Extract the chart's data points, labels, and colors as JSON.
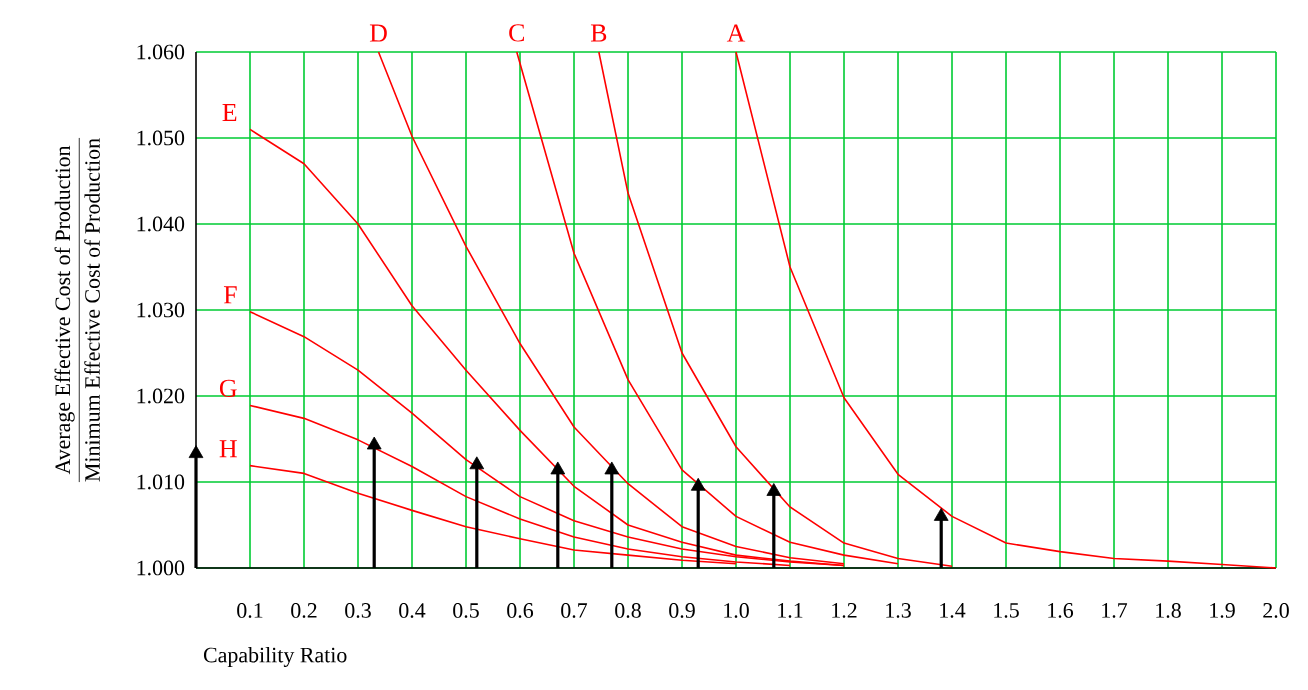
{
  "chart_data": {
    "type": "line",
    "xlabel": "Capability Ratio",
    "ylabel": "\\frac{\\mbox{Average Effective Cost of Production}}{\\mbox{Minimum Effective Cost of Production}}",
    "xlim": [
      0,
      2.0
    ],
    "ylim": [
      1.0,
      1.06
    ],
    "xticks": [
      0.1,
      0.2,
      0.3,
      0.4,
      0.5,
      0.6,
      0.7,
      0.8,
      0.9,
      {
        "value": 1.0,
        "label": "1.0"
      },
      1.1,
      1.2,
      1.3,
      1.4,
      1.5,
      1.6,
      1.7,
      1.8,
      1.9,
      {
        "value": 2.0,
        "label": "2.0"
      }
    ],
    "yticks": [
      {
        "value": 1.0,
        "label": "1.000"
      },
      {
        "value": 1.01,
        "label": "1.010"
      },
      {
        "value": 1.02,
        "label": "1.020"
      },
      {
        "value": 1.03,
        "label": "1.030"
      },
      {
        "value": 1.04,
        "label": "1.040"
      },
      {
        "value": 1.05,
        "label": "1.050"
      },
      {
        "value": 1.06,
        "label": "1.060"
      }
    ],
    "grid": true,
    "series": [
      {
        "name": "A",
        "color": "#ff0000",
        "x": [
          1.0,
          1.1,
          1.2,
          1.3,
          1.4,
          1.5,
          1.6,
          1.7,
          1.8,
          1.9,
          2.0
        ],
        "values": [
          1.06,
          1.035,
          1.0198,
          1.0109,
          1.006,
          1.0029,
          1.0019,
          1.0011,
          1.0008,
          1.0004,
          1.0
        ]
      },
      {
        "name": "B",
        "color": "#ff0000",
        "x": [
          0.746,
          0.8,
          0.9,
          1.0,
          1.1,
          1.2,
          1.3,
          1.4
        ],
        "values": [
          1.06,
          1.0436,
          1.025,
          1.0141,
          1.0071,
          1.0029,
          1.0011,
          1.0002
        ]
      },
      {
        "name": "C",
        "color": "#ff0000",
        "x": [
          0.594,
          0.7,
          0.8,
          0.9,
          1.0,
          1.1,
          1.2,
          1.3
        ],
        "values": [
          1.06,
          1.0366,
          1.0219,
          1.0114,
          1.006,
          1.003,
          1.0015,
          1.0005
        ]
      },
      {
        "name": "D",
        "color": "#ff0000",
        "x": [
          0.338,
          0.4,
          0.5,
          0.6,
          0.7,
          0.8,
          0.9,
          1.0,
          1.1,
          1.2
        ],
        "values": [
          1.06,
          1.0502,
          1.0374,
          1.0261,
          1.0164,
          1.0098,
          1.0048,
          1.0025,
          1.0012,
          1.0005
        ]
      },
      {
        "name": "E",
        "color": "#ff0000",
        "x": [
          0.1,
          0.2,
          0.3,
          0.4,
          0.5,
          0.6,
          0.7,
          0.8,
          0.9,
          1.0,
          1.1,
          1.2
        ],
        "values": [
          1.051,
          1.047,
          1.04,
          1.0305,
          1.023,
          1.016,
          1.0095,
          1.005,
          1.003,
          1.0015,
          1.0008,
          1.0003
        ]
      },
      {
        "name": "F",
        "color": "#ff0000",
        "x": [
          0.1,
          0.2,
          0.3,
          0.4,
          0.5,
          0.6,
          0.7,
          0.8,
          0.9,
          1.0,
          1.1,
          1.2
        ],
        "values": [
          1.0298,
          1.0269,
          1.023,
          1.018,
          1.0126,
          1.0083,
          1.0055,
          1.0036,
          1.0022,
          1.0013,
          1.0007,
          1.0003
        ]
      },
      {
        "name": "G",
        "color": "#ff0000",
        "x": [
          0.1,
          0.2,
          0.3,
          0.4,
          0.5,
          0.6,
          0.7,
          0.8,
          0.9,
          1.0,
          1.1
        ],
        "values": [
          1.0189,
          1.0174,
          1.0149,
          1.0118,
          1.0083,
          1.0057,
          1.0036,
          1.0022,
          1.0013,
          1.0007,
          1.0003
        ]
      },
      {
        "name": "H",
        "color": "#ff0000",
        "x": [
          0.1,
          0.2,
          0.3,
          0.4,
          0.5,
          0.6,
          0.7,
          0.8,
          0.9,
          1.0
        ],
        "values": [
          1.0119,
          1.011,
          1.0087,
          1.0067,
          1.0048,
          1.0034,
          1.0021,
          1.0015,
          1.0009,
          1.0005
        ]
      },
      {
        "type": "lollipop",
        "color": "#000000",
        "x": [
          0.0,
          0.33,
          0.52,
          0.67,
          0.77,
          0.93,
          1.07,
          1.38
        ],
        "values": [
          1.0133,
          1.0143,
          1.012,
          1.0114,
          1.0114,
          1.0095,
          1.0089,
          1.006
        ]
      }
    ]
  }
}
